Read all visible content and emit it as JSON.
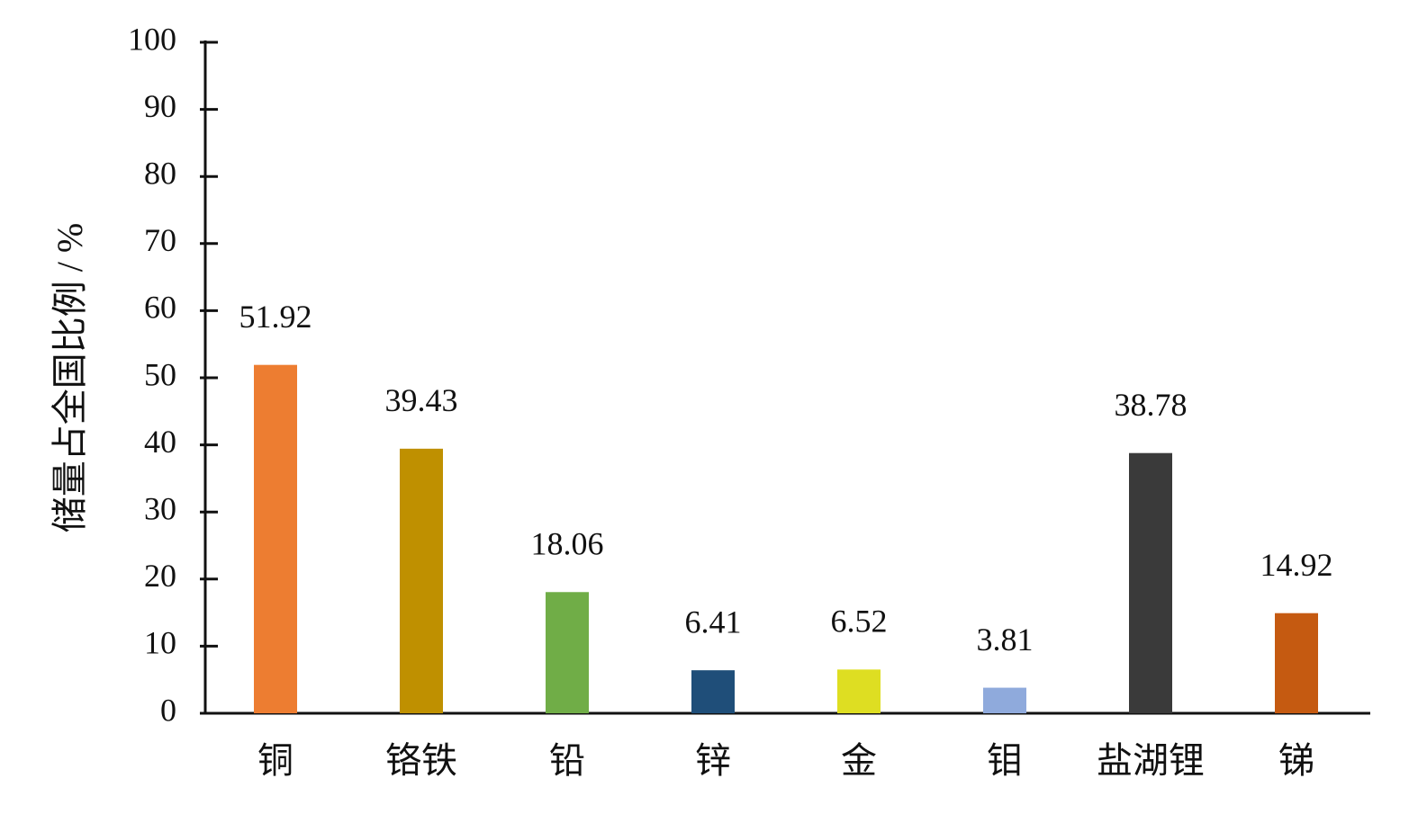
{
  "chart_data": {
    "type": "bar",
    "y_label": "储量占全国比例 / %",
    "categories": [
      "铜",
      "铬铁",
      "铅",
      "锌",
      "金",
      "钼",
      "盐湖锂",
      "锑"
    ],
    "values": [
      51.92,
      39.43,
      18.06,
      6.41,
      6.52,
      3.81,
      38.78,
      14.92
    ],
    "colors": [
      "#ed7d31",
      "#bf9000",
      "#70ad47",
      "#1f4e79",
      "#dede22",
      "#8faadc",
      "#3a3a3a",
      "#c55a11"
    ],
    "ylim": [
      0,
      100
    ],
    "yticks": [
      0,
      10,
      20,
      30,
      40,
      50,
      60,
      70,
      80,
      90,
      100
    ],
    "grid": false
  }
}
